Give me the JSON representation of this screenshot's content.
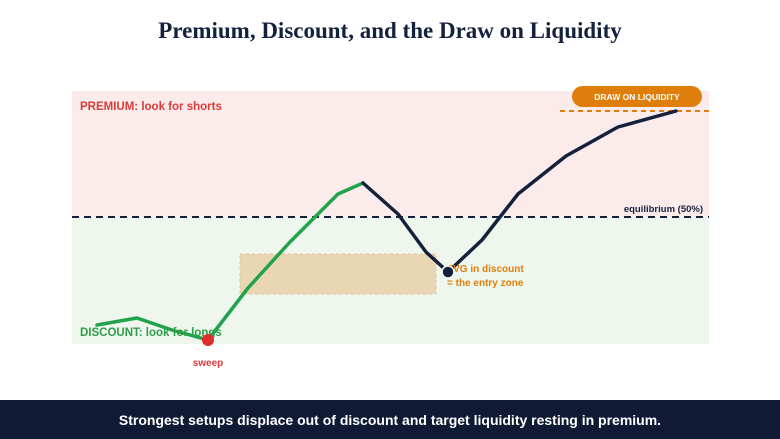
{
  "title": "Premium, Discount, and the Draw on Liquidity",
  "zones": {
    "premium_label": "PREMIUM: look for shorts",
    "discount_label": "DISCOUNT: look for longs",
    "equilibrium_label": "equilibrium (50%)"
  },
  "annotations": {
    "draw_on_liquidity": "DRAW ON LIQUIDITY",
    "sweep": "sweep",
    "fvg_line1": "FVG in discount",
    "fvg_line2": "= the entry zone"
  },
  "footer": "Strongest setups displace out of discount and target liquidity resting in premium.",
  "colors": {
    "premium_bg": "#fbeceb",
    "discount_bg": "#eef6ee",
    "premium_text": "#d93a3a",
    "discount_text": "#2e9e48",
    "navy": "#14213d",
    "orange": "#df7e0a",
    "fvg_box": "#e8d6b4",
    "sweep_dot": "#e02c2c"
  }
}
